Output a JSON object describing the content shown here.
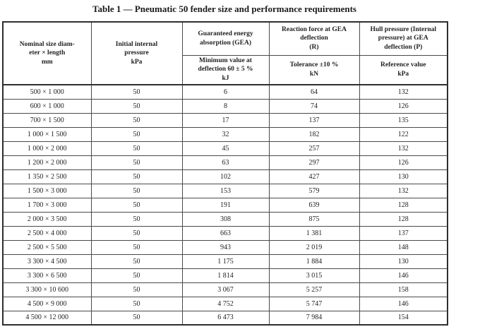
{
  "title": "Table 1 — Pneumatic 50 fender size and performance requirements",
  "table": {
    "headers": {
      "nominal_size": "Nominal size diam-\neter × length\nmm",
      "initial_pressure": "Initial internal\npressure\nkPa",
      "gea_top": "Guaranteed energy\nabsorption (GEA)",
      "gea_bottom": "Minimum value at\ndeflection 60 ± 5 %\nkJ",
      "reaction_top": "Reaction force at GEA\ndeflection\n(R)",
      "reaction_bottom": "Tolerance ±10 %\nkN",
      "hull_top": "Hull pressure (Internal\npressure) at GEA\ndeflection (P)",
      "hull_bottom": "Reference value\nkPa"
    },
    "rows": [
      [
        "500 × 1 000",
        "50",
        "6",
        "64",
        "132"
      ],
      [
        "600 × 1 000",
        "50",
        "8",
        "74",
        "126"
      ],
      [
        "700 × 1 500",
        "50",
        "17",
        "137",
        "135"
      ],
      [
        "1 000 × 1 500",
        "50",
        "32",
        "182",
        "122"
      ],
      [
        "1 000 × 2 000",
        "50",
        "45",
        "257",
        "132"
      ],
      [
        "1 200 × 2 000",
        "50",
        "63",
        "297",
        "126"
      ],
      [
        "1 350 × 2 500",
        "50",
        "102",
        "427",
        "130"
      ],
      [
        "1 500 × 3 000",
        "50",
        "153",
        "579",
        "132"
      ],
      [
        "1 700 × 3 000",
        "50",
        "191",
        "639",
        "128"
      ],
      [
        "2 000 × 3 500",
        "50",
        "308",
        "875",
        "128"
      ],
      [
        "2 500 × 4 000",
        "50",
        "663",
        "1 381",
        "137"
      ],
      [
        "2 500 × 5 500",
        "50",
        "943",
        "2 019",
        "148"
      ],
      [
        "3 300 × 4 500",
        "50",
        "1 175",
        "1 884",
        "130"
      ],
      [
        "3 300 × 6 500",
        "50",
        "1 814",
        "3 015",
        "146"
      ],
      [
        "3 300 × 10 600",
        "50",
        "3 067",
        "5 257",
        "158"
      ],
      [
        "4 500 × 9 000",
        "50",
        "4 752",
        "5 747",
        "146"
      ],
      [
        "4 500 × 12 000",
        "50",
        "6 473",
        "7 984",
        "154"
      ]
    ],
    "cell_names": [
      "cell-nominal-size",
      "cell-initial-pressure",
      "cell-gea-minimum",
      "cell-reaction-force",
      "cell-hull-pressure"
    ]
  }
}
